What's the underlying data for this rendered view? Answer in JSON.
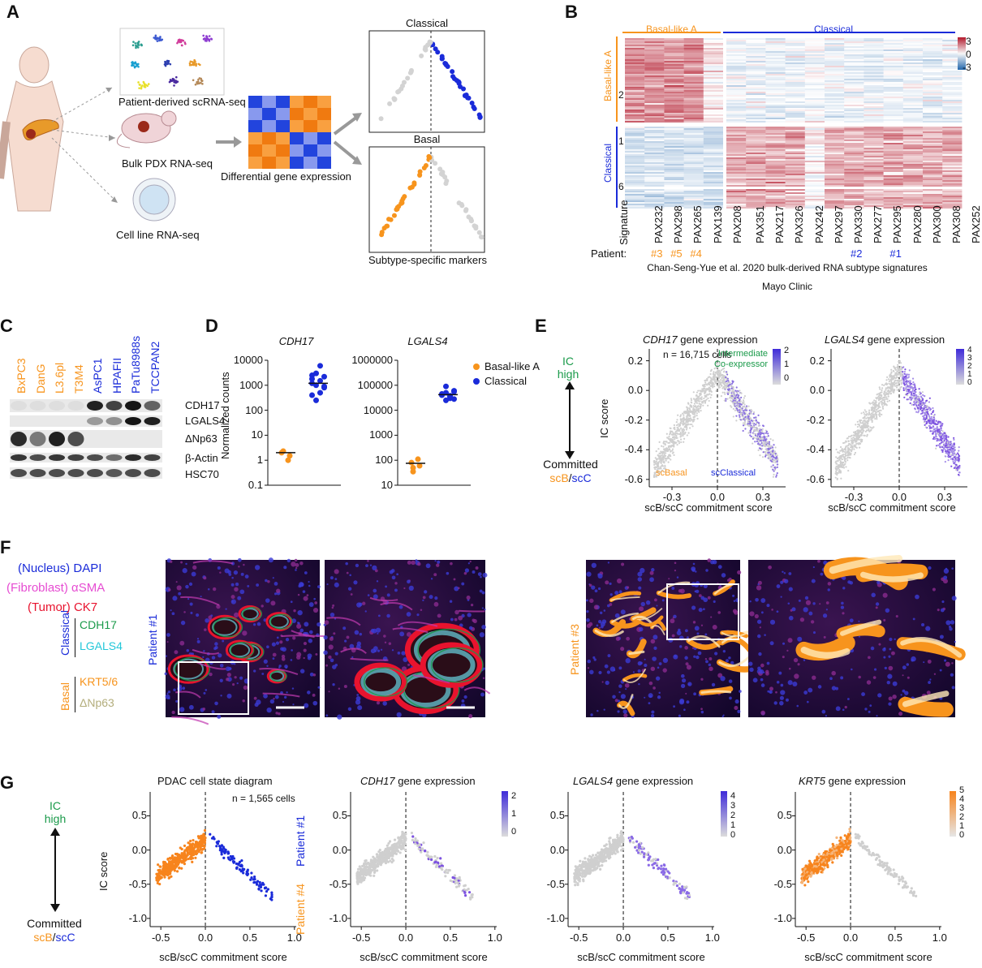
{
  "panel_labels": {
    "A": "A",
    "B": "B",
    "C": "C",
    "D": "D",
    "E": "E",
    "F": "F",
    "G": "G"
  },
  "colors": {
    "orange": "#f7941d",
    "blue": "#1a2bd9",
    "green": "#1a9a4a",
    "heat_red": "#b2182b",
    "heat_blue": "#2166ac",
    "magenta": "#e64cd2",
    "red": "#e8132e",
    "cyan": "#22c7d9",
    "khaki": "#b3ad7c",
    "gray": "#c8c8c8",
    "purple": "#7d52e0"
  },
  "icons": [
    "human-body-icon",
    "pancreas-icon",
    "mouse-icon",
    "petri-dish-icon",
    "umap-scatter-icon",
    "heatmap-icon",
    "arrow-icon"
  ],
  "panelA": {
    "sources": [
      "Patient-derived scRNA-seq",
      "Bulk PDX RNA-seq",
      "Cell line RNA-seq"
    ],
    "middle": "Differential gene expression",
    "top_plot": "Classical",
    "bottom_plot": "Basal",
    "footer": "Subtype-specific markers"
  },
  "panelB": {
    "group_labels": [
      "Basal-like A",
      "Classical"
    ],
    "row_group_labels": [
      "Basal-like A",
      "Classical"
    ],
    "row_cluster_labels": [
      "2",
      "1",
      "6"
    ],
    "signature_label": "Signature",
    "samples": [
      "PAX232",
      "PAX298",
      "PAX265",
      "PAX139",
      "PAX208",
      "PAX351",
      "PAX217",
      "PAX326",
      "PAX242",
      "PAX297",
      "PAX330",
      "PAX277",
      "PAX295",
      "PAX280",
      "PAX300",
      "PAX308",
      "PAX252"
    ],
    "patient_label": "Patient:",
    "patient_marks": [
      {
        "sample": "PAX232",
        "label": "#3",
        "color": "#f7941d"
      },
      {
        "sample": "PAX298",
        "label": "#5",
        "color": "#f7941d"
      },
      {
        "sample": "PAX265",
        "label": "#4",
        "color": "#f7941d"
      },
      {
        "sample": "PAX330",
        "label": "#2",
        "color": "#1a2bd9"
      },
      {
        "sample": "PAX295",
        "label": "#1",
        "color": "#1a2bd9"
      }
    ],
    "colorbar_ticks": [
      "3",
      "0",
      "-3"
    ],
    "caption1": "Chan-Seng-Yue et al. 2020 bulk-derived RNA subtype signatures",
    "caption2": "Mayo Clinic"
  },
  "panelC": {
    "lanes": [
      {
        "name": "BxPC3",
        "color": "#f7941d"
      },
      {
        "name": "DanG",
        "color": "#f7941d"
      },
      {
        "name": "L3.6pl",
        "color": "#f7941d"
      },
      {
        "name": "T3M4",
        "color": "#f7941d"
      },
      {
        "name": "AsPC1",
        "color": "#1a2bd9"
      },
      {
        "name": "HPAFII",
        "color": "#1a2bd9"
      },
      {
        "name": "PaTu8988s",
        "color": "#1a2bd9"
      },
      {
        "name": "TCCPAN2",
        "color": "#1a2bd9"
      }
    ],
    "bands": [
      "CDH17",
      "LGALS4",
      "ΔNp63",
      "β-Actin",
      "HSC70"
    ]
  },
  "panelD": {
    "ylabel": "Normalized counts",
    "plots": [
      {
        "gene": "CDH17",
        "yticks": [
          "10000",
          "1000",
          "100",
          "10",
          "1",
          "0.1"
        ]
      },
      {
        "gene": "LGALS4",
        "yticks": [
          "1000000",
          "100000",
          "10000",
          "1000",
          "100",
          "10"
        ]
      }
    ],
    "legend": [
      {
        "label": "Basal-like A",
        "color": "#f7941d"
      },
      {
        "label": "Classical",
        "color": "#1a2bd9"
      }
    ]
  },
  "panelE": {
    "axis_text": {
      "top1": "IC",
      "top2": "high",
      "bottom1": "Committed",
      "bottom_scb": "scB",
      "slash": "/",
      "bottom_scc": "scC"
    },
    "ylabel": "IC score",
    "xlabel": "scB/scC commitment score",
    "plots": [
      {
        "gene": "CDH17",
        "suffix": " gene expression",
        "n_label": "n = 16,715 cells",
        "annot1": "Intermediate",
        "annot2": "Co-expressor",
        "scbasal": "scBasal",
        "scclassical": "scClassical",
        "colorbar_ticks": [
          "2",
          "1",
          "0"
        ]
      },
      {
        "gene": "LGALS4",
        "suffix": " gene expression",
        "colorbar_ticks": [
          "4",
          "3",
          "2",
          "1",
          "0"
        ]
      }
    ],
    "yticks": [
      "0.2",
      "0.0",
      "-0.2",
      "-0.4",
      "-0.6"
    ],
    "xticks": [
      "-0.3",
      "0.0",
      "0.3"
    ]
  },
  "panelF": {
    "legend": [
      {
        "prefix": "(Nucleus) ",
        "marker": "DAPI",
        "prefix_color": "#1a2bd9",
        "marker_color": "#1a2bd9"
      },
      {
        "prefix": "(Fibroblast) ",
        "marker": "αSMA",
        "prefix_color": "#e64cd2",
        "marker_color": "#e64cd2"
      },
      {
        "prefix": "(Tumor) ",
        "marker": "CK7",
        "prefix_color": "#e8132e",
        "marker_color": "#e8132e"
      }
    ],
    "classical_label": "Classical",
    "classical_markers": [
      {
        "name": "CDH17",
        "color": "#1a9a4a"
      },
      {
        "name": "LGALS4",
        "color": "#22c7d9"
      }
    ],
    "basal_label": "Basal",
    "basal_markers": [
      {
        "name": "KRT5/6",
        "color": "#f7941d"
      },
      {
        "name": "ΔNp63",
        "color": "#b3ad7c"
      }
    ],
    "patient1": "Patient #1",
    "patient3": "Patient #3"
  },
  "panelG": {
    "axis_text": {
      "top1": "IC",
      "top2": "high",
      "bottom1": "Committed",
      "bottom_scb": "scB",
      "slash": "/",
      "bottom_scc": "scC"
    },
    "ylabel": "IC score",
    "xlabel": "scB/scC commitment score",
    "state_title": "PDAC cell state diagram",
    "n_label": "n = 1,565 cells",
    "patients": [
      {
        "label": "Patient #1",
        "color": "#1a2bd9"
      },
      {
        "label": "Patient #4",
        "color": "#f7941d"
      }
    ],
    "gene_plots": [
      {
        "gene": "CDH17",
        "suffix": " gene expression",
        "colorbar_ticks": [
          "2",
          "1",
          "0"
        ]
      },
      {
        "gene": "LGALS4",
        "suffix": " gene expression",
        "colorbar_ticks": [
          "4",
          "3",
          "2",
          "1",
          "0"
        ]
      },
      {
        "gene": "KRT5",
        "suffix": " gene expression",
        "colorbar_ticks": [
          "5",
          "4",
          "3",
          "2",
          "1",
          "0"
        ]
      }
    ],
    "yticks": [
      "0.5",
      "0.0",
      "-0.5",
      "-1.0"
    ],
    "xticks": [
      "-0.5",
      "0.0",
      "0.5",
      "1.0"
    ]
  }
}
